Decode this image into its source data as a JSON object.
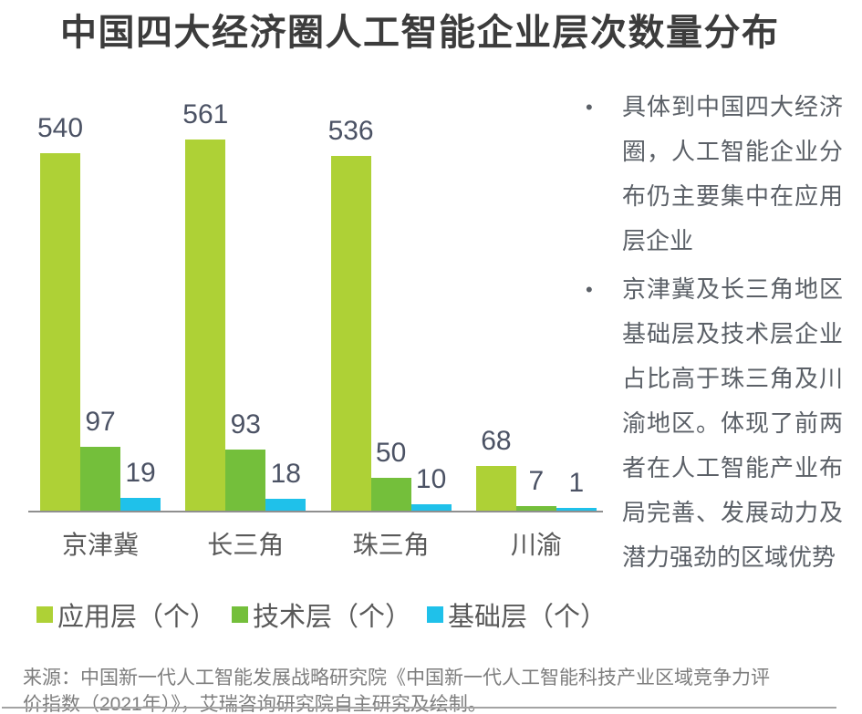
{
  "chart_data": {
    "type": "bar",
    "title": "中国四大经济圈人工智能企业层次数量分布",
    "categories": [
      "京津冀",
      "长三角",
      "珠三角",
      "川渝"
    ],
    "series": [
      {
        "name": "应用层（个）",
        "color": "#aed136",
        "values": [
          540,
          561,
          536,
          68
        ]
      },
      {
        "name": "技术层（个）",
        "color": "#74bf3b",
        "values": [
          97,
          93,
          50,
          7
        ]
      },
      {
        "name": "基础层（个）",
        "color": "#1fc1ea",
        "values": [
          19,
          18,
          10,
          1
        ]
      }
    ],
    "ylim": [
      0,
      600
    ],
    "grid": false,
    "value_labels": true,
    "legend_position": "bottom"
  },
  "insights": {
    "bullets": [
      "具体到中国四大经济圈，人工智能企业分布仍主要集中在应用层企业",
      "京津冀及长三角地区基础层及技术层企业占比高于珠三角及川渝地区。体现了前两者在人工智能产业布局完善、发展动力及潜力强劲的区域优势"
    ]
  },
  "source": {
    "text": "来源：中国新一代人工智能发展战略研究院《中国新一代人工智能科技产业区域竞争力评价指数（2021年）》，艾瑞咨询研究院自主研究及绘制。"
  },
  "colors": {
    "title": "#3c3c3c",
    "axis": "#8f8f8f",
    "value_label": "#4b5264",
    "category_label": "#595959",
    "note_text": "#5b6067",
    "source_text": "#7d7d7d"
  }
}
